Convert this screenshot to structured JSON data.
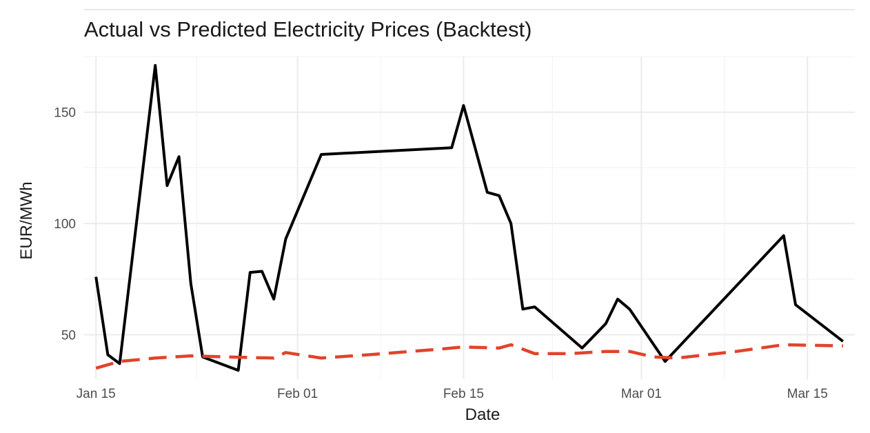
{
  "chart_data": {
    "type": "line",
    "title": "Actual vs Predicted Electricity Prices (Backtest)",
    "xlabel": "Date",
    "ylabel": "EUR/MWh",
    "xlim": [
      "2024-01-14",
      "2024-03-19"
    ],
    "ylim": [
      30,
      175
    ],
    "x_ticks": [
      {
        "date": "2024-01-15",
        "label": "Jan 15"
      },
      {
        "date": "2024-02-01",
        "label": "Feb 01"
      },
      {
        "date": "2024-02-15",
        "label": "Feb 15"
      },
      {
        "date": "2024-03-01",
        "label": "Mar 01"
      },
      {
        "date": "2024-03-15",
        "label": "Mar 15"
      }
    ],
    "y_ticks": [
      50,
      100,
      150
    ],
    "grid": true,
    "legend": "none",
    "series": [
      {
        "color": "#000000",
        "style": "solid",
        "points": [
          [
            "2024-01-15",
            76
          ],
          [
            "2024-01-16",
            41
          ],
          [
            "2024-01-17",
            37
          ],
          [
            "2024-01-20",
            171
          ],
          [
            "2024-01-21",
            117
          ],
          [
            "2024-01-22",
            130
          ],
          [
            "2024-01-23",
            73
          ],
          [
            "2024-01-24",
            40
          ],
          [
            "2024-01-27",
            34
          ],
          [
            "2024-01-28",
            78
          ],
          [
            "2024-01-29",
            78.5
          ],
          [
            "2024-01-30",
            66
          ],
          [
            "2024-01-31",
            93
          ],
          [
            "2024-02-03",
            131
          ],
          [
            "2024-02-14",
            134
          ],
          [
            "2024-02-15",
            153
          ],
          [
            "2024-02-17",
            114
          ],
          [
            "2024-02-18",
            112.5
          ],
          [
            "2024-02-19",
            100
          ],
          [
            "2024-02-20",
            61.5
          ],
          [
            "2024-02-21",
            62.5
          ],
          [
            "2024-02-25",
            44
          ],
          [
            "2024-02-27",
            55
          ],
          [
            "2024-02-28",
            66
          ],
          [
            "2024-02-29",
            61.5
          ],
          [
            "2024-03-03",
            38
          ],
          [
            "2024-03-13",
            94.5
          ],
          [
            "2024-03-14",
            63.5
          ],
          [
            "2024-03-18",
            47
          ]
        ]
      },
      {
        "color": "#e2432a",
        "style": "dashed",
        "points": [
          [
            "2024-01-15",
            35
          ],
          [
            "2024-01-17",
            38
          ],
          [
            "2024-01-20",
            39.5
          ],
          [
            "2024-01-23",
            40.5
          ],
          [
            "2024-01-26",
            40
          ],
          [
            "2024-01-30",
            39.5
          ],
          [
            "2024-01-31",
            42
          ],
          [
            "2024-02-03",
            39.5
          ],
          [
            "2024-02-07",
            41
          ],
          [
            "2024-02-13",
            43.5
          ],
          [
            "2024-02-15",
            44.5
          ],
          [
            "2024-02-18",
            44
          ],
          [
            "2024-02-19",
            45.5
          ],
          [
            "2024-02-21",
            41.5
          ],
          [
            "2024-02-24",
            41.5
          ],
          [
            "2024-02-27",
            42.5
          ],
          [
            "2024-02-29",
            42.5
          ],
          [
            "2024-03-02",
            40
          ],
          [
            "2024-03-04",
            39.5
          ],
          [
            "2024-03-09",
            42.5
          ],
          [
            "2024-03-13",
            45.5
          ],
          [
            "2024-03-18",
            45
          ]
        ]
      }
    ]
  }
}
